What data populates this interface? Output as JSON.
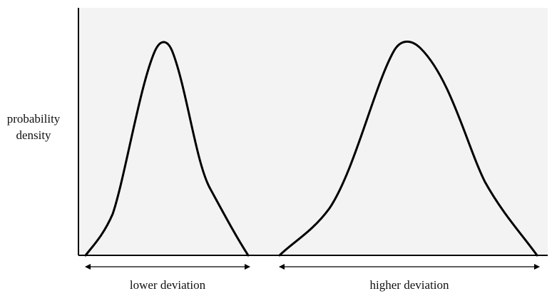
{
  "diagram": {
    "y_axis_label_line1": "probability",
    "y_axis_label_line2": "density",
    "left_curve_label": "lower deviation",
    "right_curve_label": "higher deviation",
    "plot_background": "#f3f3f3",
    "line_color": "#000000"
  }
}
